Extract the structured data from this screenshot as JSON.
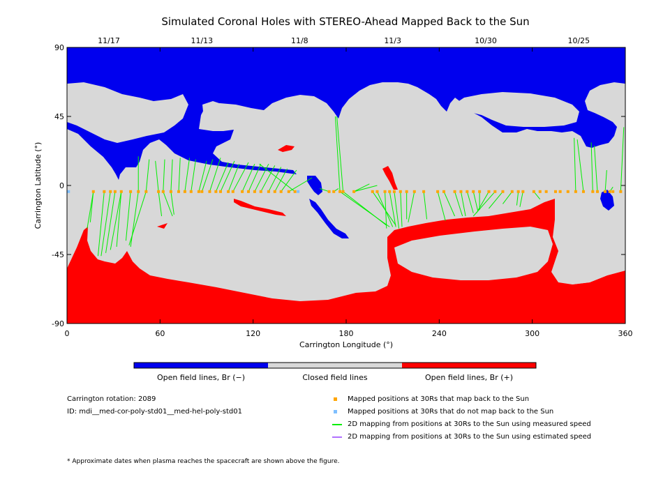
{
  "chart_data": {
    "type": "map",
    "title": "Simulated Coronal Holes with STEREO-Ahead Mapped Back to the Sun",
    "xlabel": "Carrington Longitude (°)",
    "ylabel": "Carrington Latitude (°)",
    "xlim": [
      0,
      360
    ],
    "ylim": [
      -90,
      90
    ],
    "xticks": [
      "0",
      "60",
      "120",
      "180",
      "240",
      "300",
      "360"
    ],
    "yticks": [
      "90",
      "45",
      "0",
      "-45",
      "-90"
    ],
    "top_dates": [
      {
        "lon": 27,
        "label": "11/17"
      },
      {
        "lon": 87,
        "label": "11/13"
      },
      {
        "lon": 150,
        "label": "11/8"
      },
      {
        "lon": 210,
        "label": "11/3"
      },
      {
        "lon": 270,
        "label": "10/30"
      },
      {
        "lon": 330,
        "label": "10/25"
      }
    ],
    "colorbar": [
      {
        "label": "Open field lines, Br (−)",
        "color": "#0000ee"
      },
      {
        "label": "Closed field lines",
        "color": "#d8d8d8"
      },
      {
        "label": "Open field lines, Br (+)",
        "color": "#ff0000"
      }
    ],
    "mapped_positions_lat": -4,
    "mapped_positions_lon": [
      17,
      24,
      28,
      31,
      35,
      41,
      46,
      51,
      59,
      62,
      67,
      72,
      76,
      80,
      85,
      87,
      92,
      96,
      99,
      104,
      107,
      113,
      117,
      121,
      125,
      130,
      134,
      138,
      143,
      147,
      169,
      172,
      176,
      178,
      185,
      197,
      200,
      205,
      208,
      211,
      215,
      219,
      224,
      230,
      239,
      243,
      250,
      254,
      258,
      262,
      266,
      272,
      276,
      281,
      287,
      291,
      294,
      301,
      305,
      309,
      315,
      318,
      323,
      328,
      333,
      339,
      342,
      347,
      350,
      352,
      357
    ],
    "unmapped_positions_lon": [
      1,
      149
    ],
    "field_lines_measured": [
      [
        17,
        -4,
        13,
        -28
      ],
      [
        24,
        -4,
        20,
        -46
      ],
      [
        28,
        -4,
        22,
        -46
      ],
      [
        31,
        -4,
        25,
        -44
      ],
      [
        35,
        -4,
        28,
        -42
      ],
      [
        41,
        -4,
        38,
        -36
      ],
      [
        46,
        -4,
        41,
        -40
      ],
      [
        51,
        -4,
        40,
        -39
      ],
      [
        17,
        -4,
        15,
        -24
      ],
      [
        35,
        -4,
        32,
        -40
      ],
      [
        59,
        -4,
        61,
        -20
      ],
      [
        62,
        -4,
        68,
        -20
      ],
      [
        67,
        -4,
        69,
        -19
      ],
      [
        46,
        -4,
        46,
        19
      ],
      [
        51,
        -4,
        53,
        17
      ],
      [
        59,
        -4,
        57,
        16
      ],
      [
        62,
        -4,
        63,
        17
      ],
      [
        67,
        -4,
        68,
        17
      ],
      [
        72,
        -4,
        73,
        18
      ],
      [
        76,
        -4,
        79,
        18
      ],
      [
        80,
        -4,
        83,
        17
      ],
      [
        85,
        -4,
        90,
        16
      ],
      [
        87,
        -4,
        94,
        17
      ],
      [
        92,
        -4,
        99,
        18
      ],
      [
        96,
        -4,
        104,
        15
      ],
      [
        99,
        -4,
        108,
        16
      ],
      [
        104,
        -4,
        111,
        14
      ],
      [
        107,
        -4,
        117,
        15
      ],
      [
        113,
        -4,
        121,
        14
      ],
      [
        117,
        -4,
        125,
        14
      ],
      [
        121,
        -4,
        130,
        14
      ],
      [
        125,
        -4,
        134,
        13
      ],
      [
        130,
        -4,
        138,
        12
      ],
      [
        134,
        -4,
        142,
        11
      ],
      [
        138,
        -4,
        148,
        10
      ],
      [
        143,
        -4,
        158,
        5
      ],
      [
        147,
        -4,
        124,
        14
      ],
      [
        169,
        -4,
        163,
        -2
      ],
      [
        172,
        -4,
        175,
        -2
      ],
      [
        176,
        -4,
        173,
        45
      ],
      [
        178,
        -4,
        174,
        45
      ],
      [
        185,
        -4,
        195,
        1
      ],
      [
        197,
        -4,
        212,
        -26
      ],
      [
        200,
        -4,
        210,
        -27
      ],
      [
        205,
        -4,
        206,
        -28
      ],
      [
        208,
        -4,
        212,
        -27
      ],
      [
        211,
        -4,
        214,
        -28
      ],
      [
        215,
        -4,
        216,
        -27
      ],
      [
        219,
        -4,
        219,
        -22
      ],
      [
        185,
        -4,
        200,
        0
      ],
      [
        176,
        -4,
        208,
        -27
      ],
      [
        178,
        -4,
        206,
        -26
      ],
      [
        224,
        -4,
        220,
        -24
      ],
      [
        230,
        -4,
        232,
        -22
      ],
      [
        239,
        -4,
        244,
        -23
      ],
      [
        243,
        -4,
        250,
        -20
      ],
      [
        250,
        -4,
        255,
        -20
      ],
      [
        254,
        -4,
        257,
        -20
      ],
      [
        258,
        -4,
        262,
        -18
      ],
      [
        262,
        -4,
        265,
        -17
      ],
      [
        266,
        -4,
        266,
        -16
      ],
      [
        272,
        -4,
        264,
        -18
      ],
      [
        276,
        -4,
        262,
        -20
      ],
      [
        281,
        -4,
        272,
        -15
      ],
      [
        287,
        -4,
        281,
        -12
      ],
      [
        291,
        -4,
        290,
        -13
      ],
      [
        294,
        -4,
        292,
        -14
      ],
      [
        301,
        -4,
        305,
        -9
      ],
      [
        328,
        -4,
        327,
        31
      ],
      [
        333,
        -4,
        329,
        30
      ],
      [
        339,
        -4,
        338,
        28
      ],
      [
        342,
        -4,
        340,
        26
      ],
      [
        347,
        -4,
        348,
        10
      ],
      [
        357,
        -4,
        359,
        38
      ],
      [
        350,
        -4,
        352,
        -1
      ]
    ],
    "info_rotation_label": "Carrington rotation: 2089",
    "info_id_label": "ID: mdi__med-cor-poly-std01__med-hel-poly-std01",
    "legend": [
      {
        "kind": "square",
        "color": "#ffa500",
        "label": "Mapped positions at 30Rs that map back to the Sun"
      },
      {
        "kind": "square",
        "color": "#7fbfff",
        "label": "Mapped positions at 30Rs that do not map back to the Sun"
      },
      {
        "kind": "line",
        "color": "#00ee00",
        "label": "2D mapping from positions at 30Rs to the Sun using measured speed"
      },
      {
        "kind": "line",
        "color": "#b070ff",
        "label": "2D mapping from positions at 30Rs to the Sun using estimated speed"
      }
    ],
    "footnote": "* Approximate dates when plasma reaches the spacecraft are shown above the figure."
  }
}
